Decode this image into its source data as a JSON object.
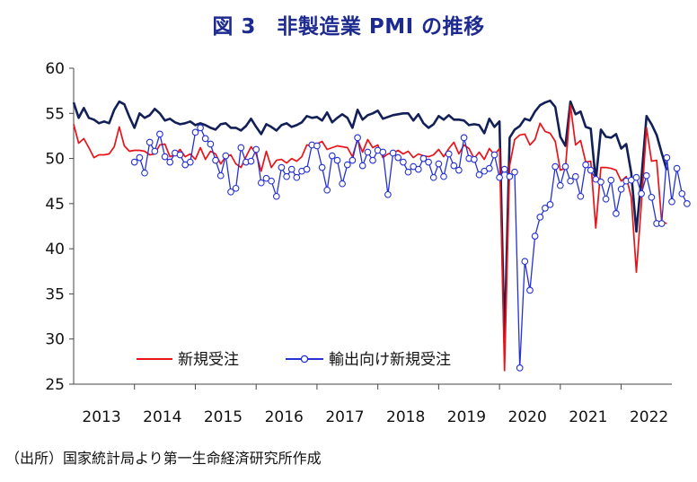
{
  "title": "図 3　非製造業 PMI の推移",
  "source": "（出所）国家統計局より第一生命経済研究所作成",
  "colors": {
    "new_orders": "#e8141a",
    "export_orders": "#2531d4",
    "pmi": "#132057",
    "axis": "#444444"
  },
  "chart_data": {
    "type": "line",
    "title": "図 3　非製造業 PMI の推移",
    "xlabel": "",
    "ylabel": "",
    "ylim": [
      25,
      60
    ],
    "yticks": [
      25,
      30,
      35,
      40,
      45,
      50,
      55,
      60
    ],
    "xlim": [
      "2013-01",
      "2022-11"
    ],
    "x_tick_labels": [
      "2013",
      "2014",
      "2015",
      "2016",
      "2017",
      "2018",
      "2019",
      "2020",
      "2021",
      "2022"
    ],
    "grid": false,
    "legend_position": "bottom-left",
    "series": [
      {
        "key": "pmi",
        "name": "",
        "start": "2013-01",
        "marker": "none",
        "values": [
          56.2,
          54.5,
          55.6,
          54.5,
          54.3,
          53.9,
          54.1,
          53.9,
          55.4,
          56.3,
          56.0,
          54.6,
          53.4,
          55.0,
          54.5,
          54.8,
          55.5,
          55.0,
          54.2,
          54.4,
          54.0,
          53.8,
          53.9,
          54.1,
          53.7,
          53.9,
          53.7,
          53.4,
          53.2,
          53.8,
          53.9,
          53.4,
          53.4,
          53.1,
          53.6,
          54.4,
          53.5,
          52.7,
          53.8,
          53.5,
          53.1,
          53.7,
          53.9,
          53.5,
          53.7,
          54.0,
          54.7,
          54.5,
          54.6,
          54.2,
          55.1,
          54.0,
          54.5,
          54.9,
          54.5,
          53.4,
          55.4,
          54.3,
          54.8,
          55.0,
          55.3,
          54.4,
          54.6,
          54.8,
          54.9,
          55.0,
          55.0,
          54.2,
          54.9,
          53.9,
          53.4,
          53.8,
          54.7,
          54.3,
          54.8,
          54.3,
          54.3,
          54.2,
          53.7,
          53.8,
          53.7,
          52.8,
          54.4,
          53.5,
          54.1,
          29.6,
          52.3,
          53.2,
          53.6,
          54.4,
          54.2,
          55.2,
          55.9,
          56.2,
          56.4,
          55.7,
          52.4,
          51.4,
          56.3,
          54.9,
          55.2,
          53.5,
          53.3,
          47.5,
          53.2,
          52.4,
          52.3,
          52.7,
          51.1,
          51.6,
          48.4,
          41.9,
          47.8,
          54.7,
          53.8,
          52.6,
          50.6,
          48.7
        ]
      },
      {
        "key": "new_orders",
        "name": "新規受注",
        "start": "2013-01",
        "marker": "none",
        "values": [
          53.8,
          51.7,
          52.2,
          51.2,
          50.1,
          50.4,
          50.4,
          50.5,
          51.3,
          53.5,
          51.4,
          50.8,
          50.9,
          50.9,
          50.8,
          50.4,
          50.5,
          51.5,
          51.6,
          50.2,
          50.4,
          51.0,
          50.2,
          50.5,
          49.9,
          51.2,
          49.9,
          50.8,
          50.5,
          49.4,
          50.2,
          50.4,
          49.4,
          49.0,
          50.2,
          51.3,
          50.5,
          48.6,
          50.8,
          49.0,
          49.8,
          49.9,
          49.5,
          50.0,
          49.7,
          50.2,
          51.5,
          51.4,
          51.6,
          51.9,
          51.0,
          51.2,
          51.4,
          51.3,
          51.2,
          50.2,
          52.1,
          50.7,
          52.1,
          51.2,
          51.5,
          50.1,
          50.5,
          50.6,
          50.9,
          50.5,
          50.8,
          50.1,
          50.5,
          50.3,
          50.2,
          50.4,
          51.0,
          50.2,
          51.1,
          51.8,
          50.5,
          51.5,
          51.1,
          50.0,
          50.7,
          49.9,
          51.1,
          50.4,
          51.1,
          26.5,
          49.2,
          52.1,
          52.6,
          52.7,
          51.5,
          52.1,
          53.9,
          53.0,
          52.8,
          51.9,
          48.7,
          48.9,
          55.9,
          51.5,
          52.0,
          49.6,
          49.7,
          42.3,
          49.0,
          49.0,
          48.9,
          48.7,
          47.5,
          48.0,
          45.7,
          37.4,
          45.0,
          53.4,
          49.7,
          49.8,
          43.0,
          42.8
        ]
      },
      {
        "key": "export_orders",
        "name": "輸出向け新規受注",
        "start": "2014-01",
        "marker": "circle",
        "values": [
          49.6,
          50.1,
          48.4,
          51.8,
          50.8,
          52.7,
          50.2,
          49.6,
          50.6,
          50.4,
          49.3,
          49.6,
          52.9,
          53.4,
          52.2,
          51.6,
          49.8,
          48.1,
          50.3,
          46.3,
          46.7,
          51.2,
          49.6,
          49.7,
          51.0,
          47.3,
          47.8,
          47.5,
          45.8,
          49.0,
          48.0,
          48.8,
          47.9,
          48.6,
          48.8,
          51.5,
          51.4,
          49.0,
          46.5,
          50.3,
          49.8,
          47.2,
          49.3,
          49.8,
          52.3,
          49.2,
          50.7,
          49.8,
          50.9,
          50.7,
          46.0,
          50.6,
          50.1,
          49.6,
          48.5,
          49.1,
          48.8,
          50.0,
          49.6,
          47.9,
          49.4,
          48.0,
          50.5,
          49.2,
          48.7,
          52.3,
          50.0,
          49.9,
          48.2,
          48.6,
          48.9,
          50.4,
          47.9,
          48.8,
          48.0,
          48.5,
          26.8,
          38.6,
          35.4,
          41.4,
          43.5,
          44.5,
          44.9,
          49.1,
          47.0,
          49.1,
          47.5,
          48.0,
          45.8,
          49.3,
          48.7,
          47.7,
          47.4,
          45.5,
          47.6,
          43.9,
          46.6,
          47.5,
          47.6,
          47.9,
          46.1,
          48.1,
          45.7,
          42.8,
          42.8,
          50.1,
          45.2,
          48.9,
          46.1,
          45.0
        ]
      }
    ]
  }
}
